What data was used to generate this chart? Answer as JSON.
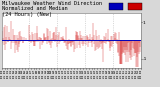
{
  "title": "Milwaukee Weather Wind Direction\nNormalized and Median\n(24 Hours) (New)",
  "title_fontsize": 3.8,
  "bg_color": "#d8d8d8",
  "plot_bg_color": "#ffffff",
  "median_line_color": "#0000bb",
  "data_color": "#cc0000",
  "median_value": 0.05,
  "ylim": [
    -1.5,
    1.5
  ],
  "yticks": [
    -1.0,
    1.0
  ],
  "ytick_labels": [
    "-1",
    "1"
  ],
  "ytick_fontsize": 3.2,
  "xtick_fontsize": 2.4,
  "n_points": 288,
  "n_vgrid": 4,
  "vgrid_color": "#aaaaaa",
  "legend_blue_color": "#0000bb",
  "legend_red_color": "#cc0000"
}
